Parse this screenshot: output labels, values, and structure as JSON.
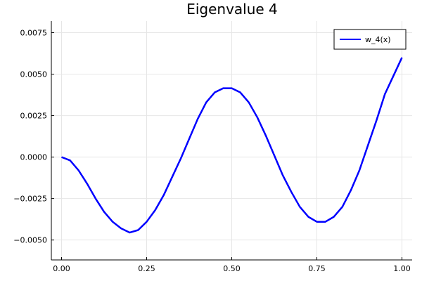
{
  "chart_data": {
    "type": "line",
    "title": "Eigenvalue 4",
    "xlabel": "",
    "ylabel": "",
    "xlim": [
      -0.03,
      1.03
    ],
    "ylim": [
      -0.0062,
      0.0082
    ],
    "x_ticks": [
      0.0,
      0.25,
      0.5,
      0.75,
      1.0
    ],
    "x_tick_labels": [
      "0.00",
      "0.25",
      "0.50",
      "0.75",
      "1.00"
    ],
    "y_ticks": [
      -0.005,
      -0.0025,
      0.0,
      0.0025,
      0.005,
      0.0075
    ],
    "y_tick_labels": [
      "−0.0050",
      "−0.0025",
      "0.0000",
      "0.0025",
      "0.0050",
      "0.0075"
    ],
    "grid": true,
    "legend_position": "top-right",
    "series": [
      {
        "name": "w_4(x)",
        "color": "#0000ff",
        "x": [
          0.0,
          0.025,
          0.05,
          0.075,
          0.1,
          0.125,
          0.15,
          0.175,
          0.2,
          0.225,
          0.25,
          0.275,
          0.3,
          0.325,
          0.35,
          0.375,
          0.4,
          0.425,
          0.45,
          0.475,
          0.5,
          0.525,
          0.55,
          0.575,
          0.6,
          0.625,
          0.65,
          0.675,
          0.7,
          0.725,
          0.75,
          0.775,
          0.8,
          0.825,
          0.85,
          0.875,
          0.9,
          0.925,
          0.95,
          0.975,
          1.0
        ],
        "y": [
          0.0,
          -0.0002,
          -0.0008,
          -0.0016,
          -0.0025,
          -0.0033,
          -0.0039,
          -0.0043,
          -0.00455,
          -0.0044,
          -0.0039,
          -0.0032,
          -0.0023,
          -0.0012,
          -0.0001,
          0.0011,
          0.0023,
          0.0033,
          0.0039,
          0.00415,
          0.00415,
          0.0039,
          0.0033,
          0.0024,
          0.0013,
          0.0001,
          -0.0011,
          -0.0021,
          -0.003,
          -0.0036,
          -0.0039,
          -0.0039,
          -0.0036,
          -0.003,
          -0.002,
          -0.0008,
          0.0007,
          0.0022,
          0.0038,
          0.0049,
          0.006
        ]
      }
    ]
  }
}
